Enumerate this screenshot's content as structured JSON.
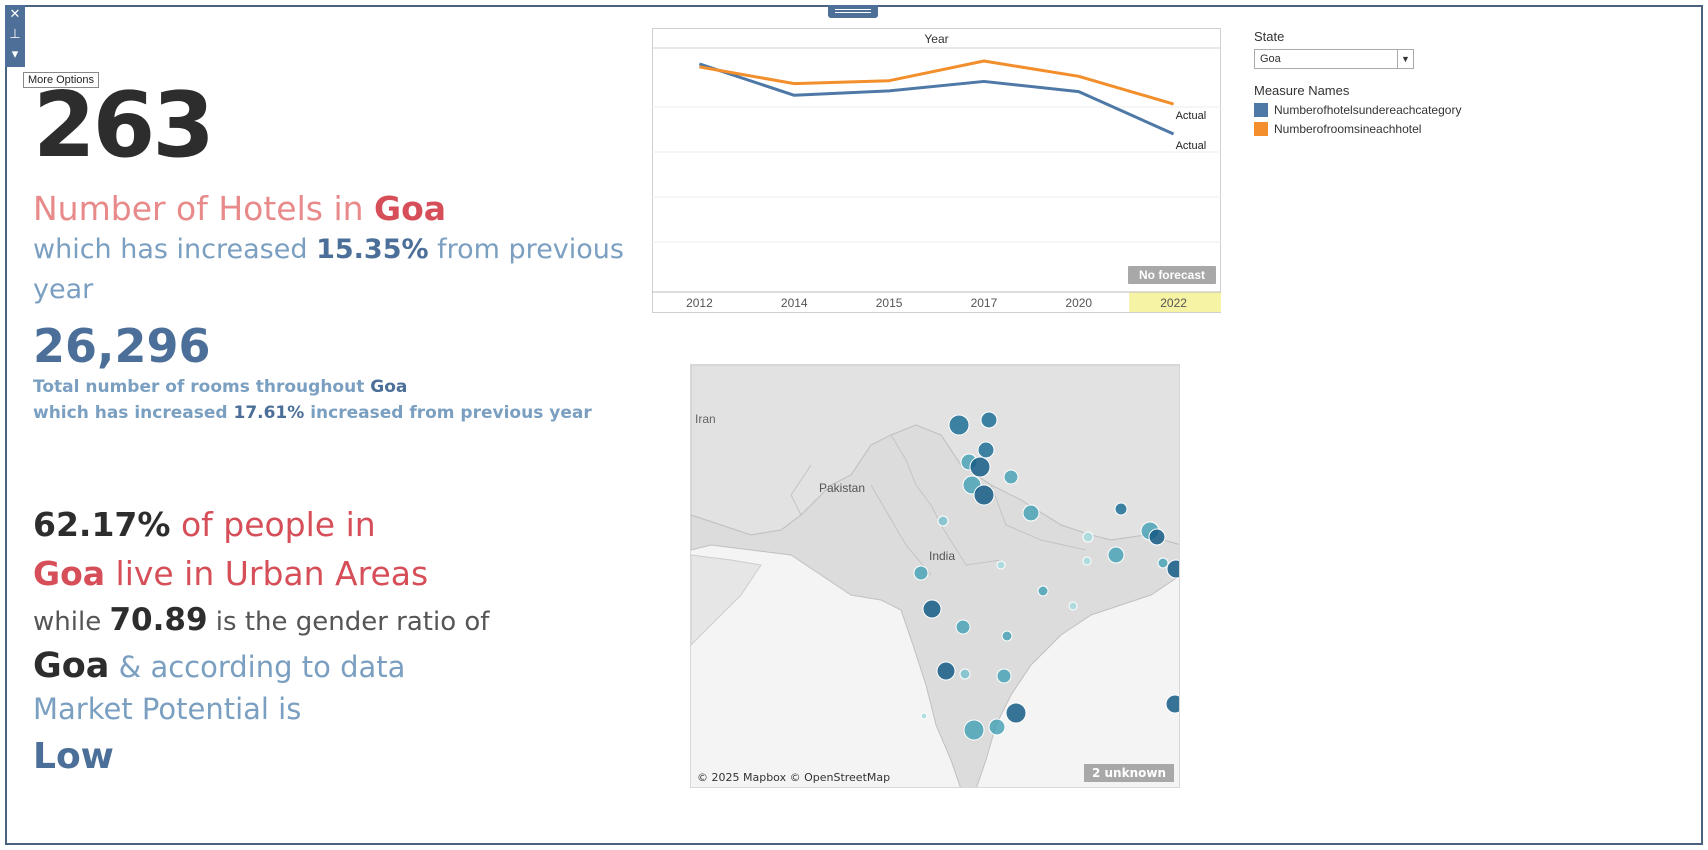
{
  "toolbar": {
    "close_icon": "close-icon",
    "pin_icon": "pin-icon",
    "more_icon": "chevron-down-icon",
    "tooltip": "More Options"
  },
  "kpi": {
    "hotels_count": "263",
    "hotels_label_prefix": "Number of Hotels in ",
    "state": "Goa",
    "increase_prefix": "which has increased ",
    "hotels_increase": "15.35%",
    "increase_suffix": " from previous year",
    "rooms_count": "26,296",
    "rooms_prefix": "Total number of rooms throughout ",
    "rooms_inc_prefix": "which has increased ",
    "rooms_increase": "17.61%",
    "rooms_inc_suffix": " increased from previous year"
  },
  "urban": {
    "pct": "62.17%",
    "pct_suffix": " of people in",
    "live_suffix": " live in Urban Areas",
    "while": "while ",
    "gender_ratio": "70.89",
    "gender_suffix": " is the gender ratio of",
    "according": " & according to data",
    "market": "Market Potential is",
    "potential": "Low"
  },
  "filters": {
    "state_title": "State",
    "state_value": "Goa",
    "legend_title": "Measure Names"
  },
  "chart_data": {
    "type": "line",
    "title": "Year",
    "categories": [
      "2012",
      "2014",
      "2015",
      "2017",
      "2020",
      "2022"
    ],
    "highlight_category": "2022",
    "series": [
      {
        "name": "Numberofhotelsundereachcategory",
        "color": "#4e79a7",
        "values": [
          0.96,
          0.53,
          0.59,
          0.72,
          0.58,
          0.0
        ],
        "end_label": "Actual"
      },
      {
        "name": "Numberofroomsineachhotel",
        "color": "#f28e2b",
        "values": [
          0.92,
          0.69,
          0.73,
          1.0,
          0.79,
          0.41
        ],
        "end_label": "Actual"
      }
    ],
    "forecast_badge": "No forecast"
  },
  "map": {
    "attribution": "© 2025 Mapbox © OpenStreetMap",
    "unknown_badge": "2 unknown",
    "labels": [
      "Iran",
      "Pakistan",
      "India"
    ]
  }
}
